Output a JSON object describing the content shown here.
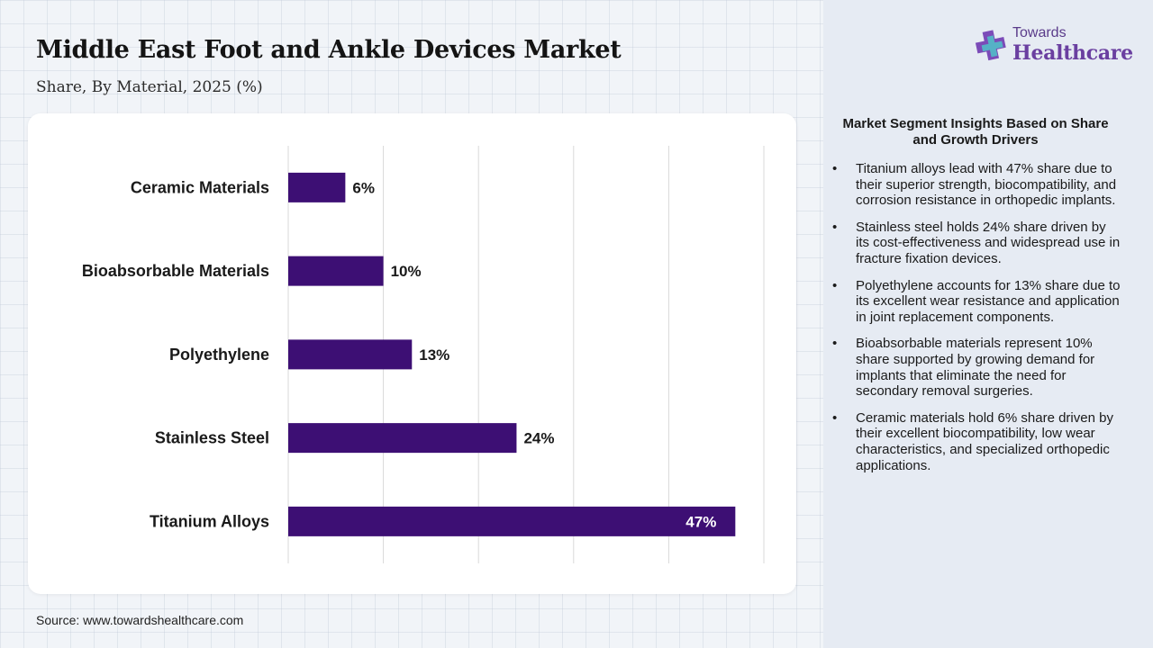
{
  "title": "Middle East Foot and Ankle Devices Market",
  "subtitle": "Share, By Material, 2025 (%)",
  "source": "Source: www.towardshealthcare.com",
  "logo": {
    "top": "Towards",
    "main": "Healthcare",
    "icon": "plus-cross-icon"
  },
  "insights": {
    "title": "Market Segment Insights Based on Share and Growth Drivers",
    "bullet": "•",
    "items": [
      "Titanium alloys lead with 47% share due to their superior strength, biocompatibility, and corrosion resistance in orthopedic implants.",
      "Stainless steel holds 24% share driven by its cost-effectiveness and widespread use in fracture fixation devices.",
      "Polyethylene accounts for 13% share due to its excellent wear resistance and application in joint replacement components.",
      "Bioabsorbable materials represent 10% share supported by growing demand for implants that eliminate the need for secondary removal surgeries.",
      "Ceramic materials hold 6% share driven by their excellent biocompatibility, low wear characteristics, and specialized orthopedic applications."
    ]
  },
  "colors": {
    "bar": "#3d0f74",
    "label_inside": "#ffffff",
    "label_outside": "#1a1a1a",
    "grid": "#d9d9d9",
    "logo_accent": "#6a3fa0"
  },
  "chart_data": {
    "type": "bar",
    "orientation": "horizontal",
    "categories": [
      "Ceramic Materials",
      "Bioabsorbable Materials",
      "Polyethylene",
      "Stainless Steel",
      "Titanium Alloys"
    ],
    "values": [
      6,
      10,
      13,
      24,
      47
    ],
    "value_labels": [
      "6%",
      "10%",
      "13%",
      "24%",
      "47%"
    ],
    "title": "Middle East Foot and Ankle Devices Market",
    "subtitle": "Share, By Material, 2025 (%)",
    "xlim": [
      0,
      50
    ],
    "grid": true,
    "legend": "none"
  }
}
